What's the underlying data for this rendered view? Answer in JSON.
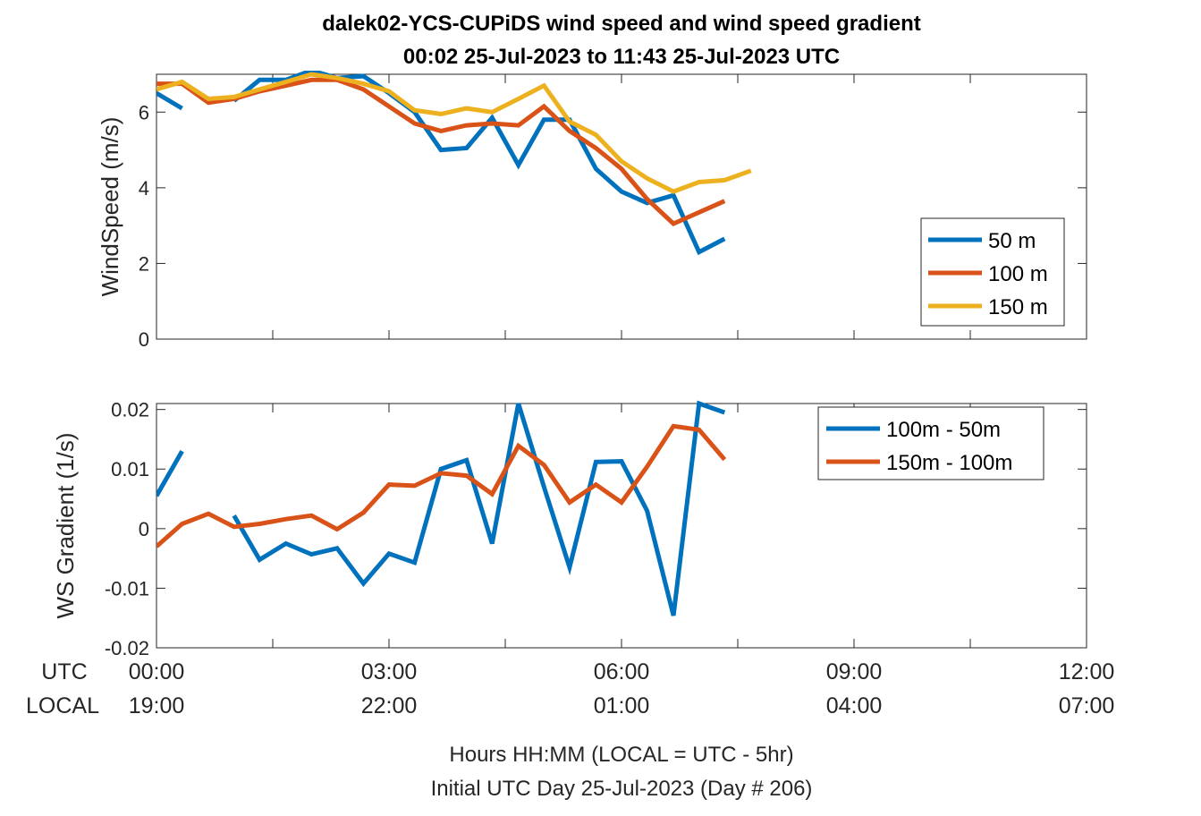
{
  "title": {
    "line1": "dalek02-YCS-CUPiDS  wind speed and wind speed gradient",
    "line2": "00:02 25-Jul-2023 to 11:43 25-Jul-2023  UTC"
  },
  "xaxis": {
    "utc_label": "UTC",
    "local_label": "LOCAL",
    "utc_ticks": [
      "00:00",
      "03:00",
      "06:00",
      "09:00",
      "12:00"
    ],
    "local_ticks": [
      "19:00",
      "22:00",
      "01:00",
      "04:00",
      "07:00"
    ],
    "xlabel_line1": "Hours HH:MM  (LOCAL = UTC - 5hr)",
    "xlabel_line2": "Initial UTC Day 25-Jul-2023 (Day # 206)"
  },
  "colors": {
    "blue": "#0072BD",
    "orange": "#D95319",
    "yellow": "#EDB120",
    "axis": "#262626"
  },
  "chart_data": [
    {
      "type": "line",
      "ylabel": "WindSpeed (m/s)",
      "xunit": "hours UTC",
      "xlim": [
        0,
        12
      ],
      "ylim": [
        0,
        7
      ],
      "yticks": [
        "0",
        "2",
        "4",
        "6"
      ],
      "grid": false,
      "legend_position": "right-middle",
      "series": [
        {
          "name": "50 m",
          "color": "#0072BD",
          "x": [
            0,
            0.33,
            null,
            1.0,
            1.33,
            1.67,
            2.0,
            2.33,
            2.67,
            3.0,
            3.33,
            3.67,
            4.0,
            4.33,
            4.67,
            5.0,
            5.33,
            5.67,
            6.0,
            6.33,
            6.67,
            7.0,
            7.33
          ],
          "y": [
            6.5,
            6.1,
            null,
            6.3,
            6.85,
            6.85,
            7.1,
            6.9,
            6.95,
            6.5,
            6.0,
            5.0,
            5.05,
            5.85,
            4.6,
            5.8,
            5.8,
            4.5,
            3.9,
            3.6,
            3.8,
            2.3,
            2.65
          ]
        },
        {
          "name": "100 m",
          "color": "#D95319",
          "x": [
            0,
            0.33,
            0.67,
            1.0,
            1.33,
            1.67,
            2.0,
            2.33,
            2.67,
            3.0,
            3.33,
            3.67,
            4.0,
            4.33,
            4.67,
            5.0,
            5.33,
            5.67,
            6.0,
            6.33,
            6.67,
            7.0,
            7.33
          ],
          "y": [
            6.75,
            6.75,
            6.25,
            6.35,
            6.55,
            6.7,
            6.85,
            6.85,
            6.6,
            6.15,
            5.7,
            5.5,
            5.65,
            5.7,
            5.65,
            6.15,
            5.5,
            5.05,
            4.5,
            3.7,
            3.05,
            3.35,
            3.65
          ]
        },
        {
          "name": "150 m",
          "color": "#EDB120",
          "x": [
            0,
            0.33,
            0.67,
            1.0,
            1.33,
            1.67,
            2.0,
            2.33,
            2.67,
            3.0,
            3.33,
            3.67,
            4.0,
            4.33,
            4.67,
            5.0,
            5.33,
            5.67,
            6.0,
            6.33,
            6.67,
            7.0,
            7.33,
            7.67
          ],
          "y": [
            6.6,
            6.8,
            6.35,
            6.4,
            6.6,
            6.8,
            7.0,
            6.9,
            6.75,
            6.55,
            6.05,
            5.95,
            6.1,
            6.0,
            6.35,
            6.7,
            5.75,
            5.4,
            4.7,
            4.25,
            3.9,
            4.15,
            4.2,
            4.45
          ]
        }
      ]
    },
    {
      "type": "line",
      "ylabel": "WS Gradient (1/s)",
      "xunit": "hours UTC",
      "xlim": [
        0,
        12
      ],
      "ylim": [
        -0.02,
        0.021
      ],
      "yticks": [
        "-0.02",
        "-0.01",
        "0",
        "0.01",
        "0.02"
      ],
      "grid": false,
      "legend_position": "top-right",
      "series": [
        {
          "name": "100m - 50m",
          "color": "#0072BD",
          "x": [
            0,
            0.33,
            null,
            1.0,
            1.33,
            1.67,
            2.0,
            2.33,
            2.67,
            3.0,
            3.33,
            3.67,
            4.0,
            4.33,
            4.67,
            5.0,
            5.33,
            5.67,
            6.0,
            6.33,
            6.67,
            7.0,
            7.33
          ],
          "y": [
            0.0055,
            0.013,
            null,
            0.0022,
            -0.0052,
            -0.0025,
            -0.0043,
            -0.0033,
            -0.0092,
            -0.0042,
            -0.0057,
            0.01,
            0.0115,
            -0.0025,
            0.021,
            0.007,
            -0.0065,
            0.0112,
            0.0113,
            0.003,
            -0.0146,
            0.021,
            0.0195
          ]
        },
        {
          "name": "150m - 100m",
          "color": "#D95319",
          "x": [
            0,
            0.33,
            0.67,
            1.0,
            1.33,
            1.67,
            2.0,
            2.33,
            2.67,
            3.0,
            3.33,
            3.67,
            4.0,
            4.33,
            4.67,
            5.0,
            5.33,
            5.67,
            6.0,
            6.33,
            6.67,
            7.0,
            7.33
          ],
          "y": [
            -0.003,
            0.0008,
            0.0025,
            0.0003,
            0.0008,
            0.0016,
            0.0022,
            -0.0001,
            0.0027,
            0.0074,
            0.0072,
            0.0093,
            0.0089,
            0.0058,
            0.0139,
            0.0107,
            0.0044,
            0.0074,
            0.0044,
            0.0104,
            0.0172,
            0.0166,
            0.0116
          ]
        }
      ]
    }
  ]
}
